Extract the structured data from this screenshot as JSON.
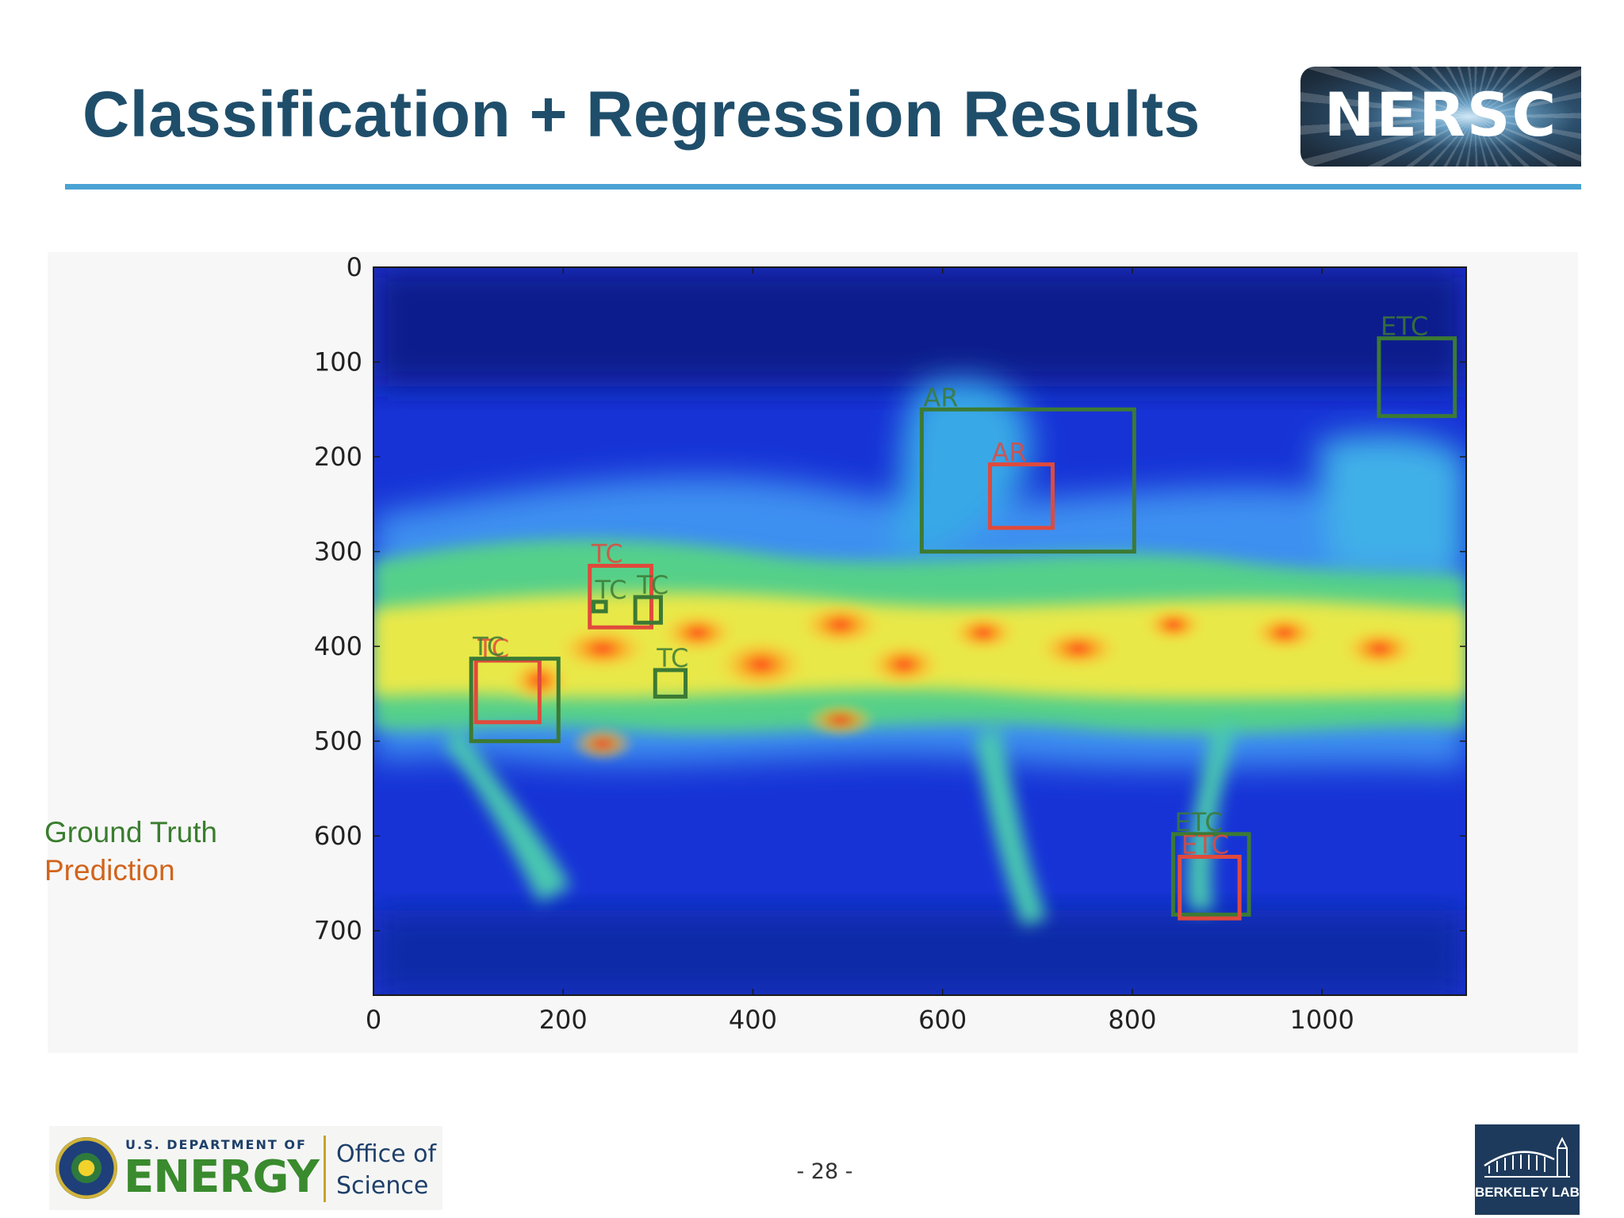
{
  "slide": {
    "title": "Classification + Regression Results",
    "page_number": "- 28 -"
  },
  "header": {
    "nersc_logo_text": "NERSC"
  },
  "legend": {
    "ground_truth": "Ground Truth",
    "prediction": "Prediction",
    "ground_truth_color": "#3a7d2e",
    "prediction_color": "#d1641c"
  },
  "chart_data": {
    "type": "heatmap",
    "x_ticks": [
      0,
      200,
      400,
      600,
      800,
      1000
    ],
    "y_ticks": [
      0,
      100,
      200,
      300,
      400,
      500,
      600,
      700
    ],
    "xlim": [
      0,
      1152
    ],
    "ylim": [
      768,
      0
    ],
    "colormap": "jet",
    "box_colors": {
      "ground_truth": "#3c7a34",
      "prediction": "#e04a3c"
    },
    "boxes": [
      {
        "label": "ETC",
        "kind": "ground_truth",
        "x0": 1060,
        "y0": 75,
        "x1": 1140,
        "y1": 157
      },
      {
        "label": "AR",
        "kind": "ground_truth",
        "x0": 578,
        "y0": 150,
        "x1": 802,
        "y1": 300
      },
      {
        "label": "AR",
        "kind": "prediction",
        "x0": 650,
        "y0": 208,
        "x1": 716,
        "y1": 275
      },
      {
        "label": "TC",
        "kind": "prediction",
        "x0": 228,
        "y0": 315,
        "x1": 293,
        "y1": 380
      },
      {
        "label": "TC",
        "kind": "ground_truth",
        "x0": 232,
        "y0": 353,
        "x1": 245,
        "y1": 363
      },
      {
        "label": "TC",
        "kind": "ground_truth",
        "x0": 276,
        "y0": 348,
        "x1": 303,
        "y1": 375
      },
      {
        "label": "TC",
        "kind": "ground_truth",
        "x0": 297,
        "y0": 425,
        "x1": 329,
        "y1": 453
      },
      {
        "label": "TC",
        "kind": "prediction",
        "x0": 108,
        "y0": 415,
        "x1": 175,
        "y1": 480
      },
      {
        "label": "TC",
        "kind": "ground_truth",
        "x0": 103,
        "y0": 413,
        "x1": 195,
        "y1": 500
      },
      {
        "label": "ETC",
        "kind": "ground_truth",
        "x0": 843,
        "y0": 598,
        "x1": 923,
        "y1": 683
      },
      {
        "label": "ETC",
        "kind": "prediction",
        "x0": 850,
        "y0": 622,
        "x1": 913,
        "y1": 687
      }
    ]
  },
  "footer": {
    "doe_line1": "U.S. DEPARTMENT OF",
    "doe_line2": "ENERGY",
    "office_line1": "Office of",
    "office_line2": "Science",
    "berkeley_text": "BERKELEY LAB"
  }
}
